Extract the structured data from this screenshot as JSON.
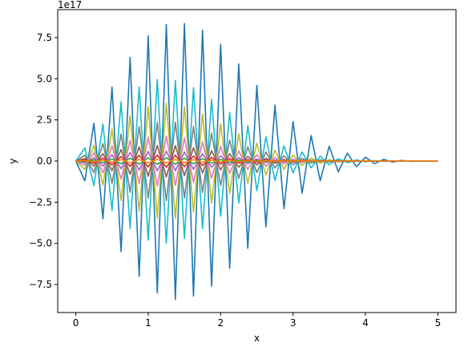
{
  "chart_data": {
    "type": "line",
    "title": "",
    "xlabel": "x",
    "ylabel": "y",
    "y_offset_text": "1e17",
    "xlim": [
      -0.25,
      5.25
    ],
    "ylim": [
      -9.2,
      9.2
    ],
    "y_unit_multiplier": 1e+17,
    "xticks": [
      0,
      1,
      2,
      3,
      4,
      5
    ],
    "xtick_labels": [
      "0",
      "1",
      "2",
      "3",
      "4",
      "5"
    ],
    "yticks": [
      -7.5,
      -5.0,
      -2.5,
      0.0,
      2.5,
      5.0,
      7.5
    ],
    "ytick_labels": [
      "−7.5",
      "−5.0",
      "−2.5",
      "0.0",
      "2.5",
      "5.0",
      "7.5"
    ],
    "grid": false,
    "legend": "none",
    "x": [
      0,
      0.125,
      0.25,
      0.375,
      0.5,
      0.625,
      0.75,
      0.875,
      1.0,
      1.125,
      1.25,
      1.375,
      1.5,
      1.625,
      1.75,
      1.875,
      2.0,
      2.125,
      2.25,
      2.375,
      2.5,
      2.625,
      2.75,
      2.875,
      3.0,
      3.125,
      3.25,
      3.375,
      3.5,
      3.625,
      3.75,
      3.875,
      4.0,
      4.125,
      4.25,
      4.375,
      4.5,
      4.625,
      4.75,
      4.875,
      5.0
    ],
    "series": [
      {
        "color": "#1f77b4",
        "values": [
          0,
          -1.2,
          2.3,
          -3.5,
          4.5,
          -5.5,
          6.3,
          -7.0,
          7.6,
          -8.0,
          8.3,
          -8.4,
          8.35,
          -8.2,
          7.95,
          -7.6,
          7.1,
          -6.5,
          5.9,
          -5.3,
          4.6,
          -4.0,
          3.4,
          -2.9,
          2.4,
          -1.95,
          1.55,
          -1.2,
          0.9,
          -0.65,
          0.48,
          -0.34,
          0.24,
          -0.16,
          0.1,
          -0.06,
          0.04,
          -0.02,
          0.01,
          -0.005,
          0
        ]
      },
      {
        "color": "#17becf",
        "values": [
          0,
          0.8,
          -1.5,
          2.25,
          -3.0,
          3.6,
          -4.1,
          4.5,
          -4.8,
          4.95,
          -5.0,
          4.9,
          -4.7,
          4.45,
          -4.1,
          3.75,
          -3.35,
          2.95,
          -2.55,
          2.15,
          -1.8,
          1.47,
          -1.18,
          0.93,
          -0.72,
          0.55,
          -0.41,
          0.3,
          -0.22,
          0.15,
          -0.1,
          0.07,
          -0.045,
          0.028,
          -0.017,
          0.01,
          -0.006,
          0.003,
          -0.002,
          0.001,
          0
        ]
      },
      {
        "color": "#bcbd22",
        "values": [
          0,
          -0.5,
          0.95,
          -1.45,
          1.95,
          -2.4,
          2.75,
          -3.05,
          3.3,
          -3.45,
          3.5,
          -3.45,
          3.3,
          -3.1,
          2.85,
          -2.55,
          2.25,
          -1.95,
          1.65,
          -1.35,
          1.08,
          -0.85,
          0.66,
          -0.5,
          0.37,
          -0.27,
          0.19,
          -0.13,
          0.09,
          -0.06,
          0.04,
          -0.025,
          0.015,
          -0.009,
          0.005,
          -0.003,
          0.002,
          -0.001,
          0.0005,
          0,
          0
        ]
      },
      {
        "color": "#7f7f7f",
        "values": [
          0,
          0.35,
          -0.7,
          1.05,
          -1.35,
          1.65,
          -1.9,
          2.1,
          -2.25,
          2.35,
          -2.4,
          2.35,
          -2.25,
          2.1,
          -1.9,
          1.7,
          -1.48,
          1.27,
          -1.06,
          0.87,
          -0.7,
          0.55,
          -0.42,
          0.32,
          -0.23,
          0.17,
          -0.12,
          0.08,
          -0.055,
          0.036,
          -0.023,
          0.014,
          -0.009,
          0.005,
          -0.003,
          0.002,
          -0.001,
          0.0005,
          0,
          0,
          0
        ]
      },
      {
        "color": "#e377c2",
        "values": [
          0,
          -0.25,
          0.5,
          -0.72,
          0.92,
          -1.1,
          1.25,
          -1.37,
          1.45,
          -1.5,
          1.52,
          -1.48,
          1.4,
          -1.3,
          1.17,
          -1.03,
          0.89,
          -0.75,
          0.62,
          -0.5,
          0.4,
          -0.31,
          0.23,
          -0.17,
          0.12,
          -0.085,
          0.058,
          -0.039,
          0.025,
          -0.016,
          0.01,
          -0.006,
          0.0035,
          -0.002,
          0.001,
          -0.0006,
          0.0003,
          0,
          0,
          0,
          0
        ]
      },
      {
        "color": "#8c564b",
        "values": [
          0,
          0.15,
          -0.3,
          0.45,
          -0.58,
          0.7,
          -0.8,
          0.87,
          -0.92,
          0.95,
          -0.96,
          0.93,
          -0.88,
          0.81,
          -0.72,
          0.63,
          -0.54,
          0.45,
          -0.37,
          0.29,
          -0.23,
          0.17,
          -0.13,
          0.09,
          -0.065,
          0.045,
          -0.03,
          0.02,
          -0.013,
          0.008,
          -0.005,
          0.003,
          -0.0018,
          0.001,
          -0.0005,
          0.0003,
          0,
          0,
          0,
          0,
          0
        ]
      },
      {
        "color": "#9467bd",
        "values": [
          0,
          -0.1,
          0.2,
          -0.3,
          0.38,
          -0.46,
          0.52,
          -0.56,
          0.59,
          -0.6,
          0.6,
          -0.58,
          0.55,
          -0.5,
          0.44,
          -0.38,
          0.32,
          -0.26,
          0.21,
          -0.16,
          0.12,
          -0.09,
          0.065,
          -0.045,
          0.031,
          -0.021,
          0.014,
          -0.009,
          0.0055,
          -0.0033,
          0.002,
          -0.0012,
          0.0007,
          -0.0004,
          0.0002,
          0,
          0,
          0,
          0,
          0,
          0
        ]
      },
      {
        "color": "#d62728",
        "values": [
          0,
          0.06,
          -0.12,
          0.18,
          -0.24,
          0.28,
          -0.32,
          0.35,
          -0.36,
          0.37,
          -0.37,
          0.36,
          -0.34,
          0.31,
          -0.27,
          0.23,
          -0.19,
          0.155,
          -0.12,
          0.093,
          -0.07,
          0.051,
          -0.036,
          0.025,
          -0.017,
          0.011,
          -0.007,
          0.0045,
          -0.0028,
          0.0017,
          -0.001,
          0.0006,
          -0.0003,
          0.0002,
          0,
          0,
          0,
          0,
          0,
          0,
          0
        ]
      },
      {
        "color": "#2ca02c",
        "values": [
          0,
          -0.035,
          0.07,
          -0.1,
          0.13,
          -0.16,
          0.18,
          -0.19,
          0.2,
          -0.2,
          0.2,
          -0.19,
          0.18,
          -0.165,
          0.145,
          -0.125,
          0.1,
          -0.082,
          0.064,
          -0.049,
          0.036,
          -0.026,
          0.018,
          -0.012,
          0.008,
          -0.0052,
          0.0033,
          -0.002,
          0.0012,
          -0.0007,
          0.0004,
          -0.0002,
          0.0001,
          0,
          0,
          0,
          0,
          0,
          0,
          0,
          0
        ]
      },
      {
        "color": "#ff7f0e",
        "values": [
          0,
          0.02,
          -0.04,
          0.055,
          -0.07,
          0.085,
          -0.095,
          0.1,
          -0.105,
          0.105,
          -0.105,
          0.1,
          -0.093,
          0.084,
          -0.074,
          0.063,
          -0.052,
          0.042,
          -0.032,
          0.024,
          -0.018,
          0.013,
          -0.009,
          0.006,
          -0.004,
          0.0025,
          -0.0015,
          0.0009,
          -0.0005,
          0.0003,
          -0.0002,
          0.0001,
          0,
          0,
          0,
          0,
          0,
          0,
          0,
          0,
          0
        ]
      }
    ]
  }
}
